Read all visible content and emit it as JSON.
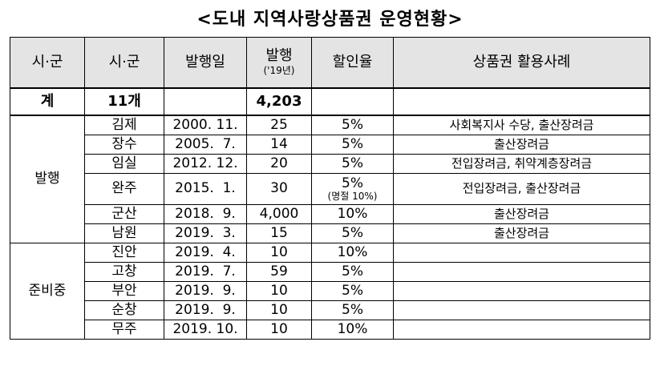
{
  "title": "<도내 지역사랑상품권 운영현황>",
  "headers": {
    "col1": "시·군",
    "col2": "시·군",
    "col3": "발행일",
    "col4": "발행",
    "col4_sub": "('19년)",
    "col5": "할인율",
    "col6": "상품권 활용사례"
  },
  "total": {
    "label": "계",
    "count": "11개",
    "date": "",
    "amount": "4,203",
    "rate": "",
    "usage": ""
  },
  "groups": {
    "issued": "발행",
    "preparing": "준비중"
  },
  "rows": [
    {
      "city": "김제",
      "date": "2000. 11.",
      "amount": "25",
      "rate": "5%",
      "rate_note": "",
      "usage": "사회복지사 수당, 출산장려금"
    },
    {
      "city": "장수",
      "date": "2005.  7.",
      "amount": "14",
      "rate": "5%",
      "rate_note": "",
      "usage": "출산장려금"
    },
    {
      "city": "임실",
      "date": "2012. 12.",
      "amount": "20",
      "rate": "5%",
      "rate_note": "",
      "usage": "전입장려금, 취약계층장려금"
    },
    {
      "city": "완주",
      "date": "2015.  1.",
      "amount": "30",
      "rate": "5%",
      "rate_note": "(명절 10%)",
      "usage": "전입장려금, 출산장려금"
    },
    {
      "city": "군산",
      "date": "2018.  9.",
      "amount": "4,000",
      "rate": "10%",
      "rate_note": "",
      "usage": "출산장려금"
    },
    {
      "city": "남원",
      "date": "2019.  3.",
      "amount": "15",
      "rate": "5%",
      "rate_note": "",
      "usage": "출산장려금"
    },
    {
      "city": "진안",
      "date": "2019.  4.",
      "amount": "10",
      "rate": "10%",
      "rate_note": "",
      "usage": ""
    },
    {
      "city": "고창",
      "date": "2019.  7.",
      "amount": "59",
      "rate": "5%",
      "rate_note": "",
      "usage": ""
    },
    {
      "city": "부안",
      "date": "2019.  9.",
      "amount": "10",
      "rate": "5%",
      "rate_note": "",
      "usage": ""
    },
    {
      "city": "순창",
      "date": "2019.  9.",
      "amount": "10",
      "rate": "5%",
      "rate_note": "",
      "usage": ""
    },
    {
      "city": "무주",
      "date": "2019. 10.",
      "amount": "10",
      "rate": "10%",
      "rate_note": "",
      "usage": ""
    }
  ]
}
